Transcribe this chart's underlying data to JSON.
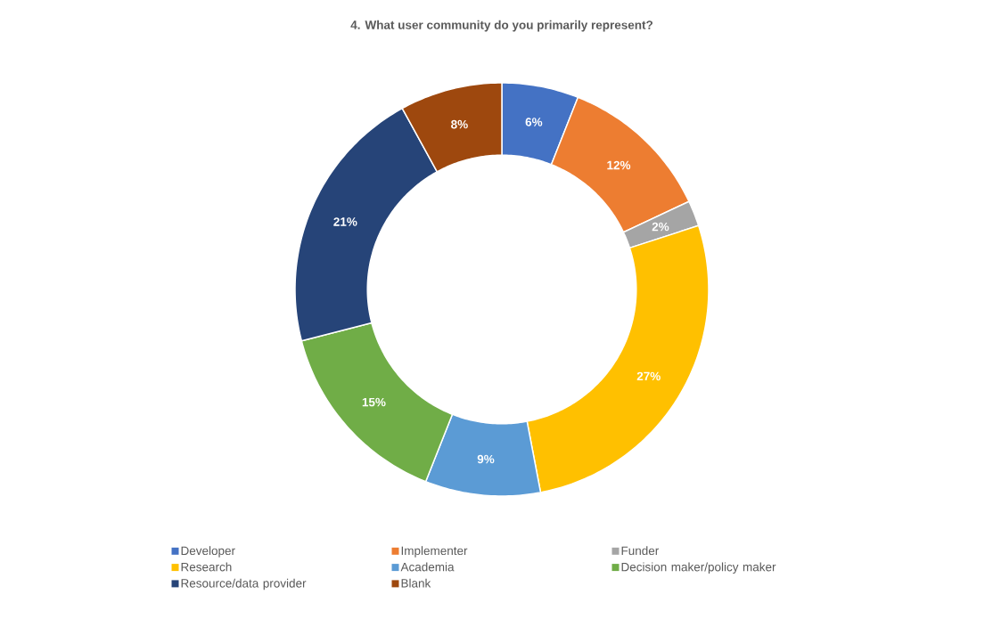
{
  "chart_data": {
    "type": "donut",
    "title": "4. What user community do you primarily represent?",
    "categories": [
      "Developer",
      "Implementer",
      "Funder",
      "Research",
      "Academia",
      "Decision maker/policy maker",
      "Resource/data provider",
      "Blank"
    ],
    "values": [
      6,
      12,
      2,
      27,
      9,
      15,
      21,
      8
    ],
    "colors": [
      "#4472c4",
      "#ed7d31",
      "#a5a5a5",
      "#ffc000",
      "#5b9bd5",
      "#70ad47",
      "#264478",
      "#9e480e"
    ],
    "value_labels": [
      "6%",
      "12%",
      "2%",
      "27%",
      "9%",
      "15%",
      "21%",
      "8%"
    ],
    "legend": "bottom"
  }
}
